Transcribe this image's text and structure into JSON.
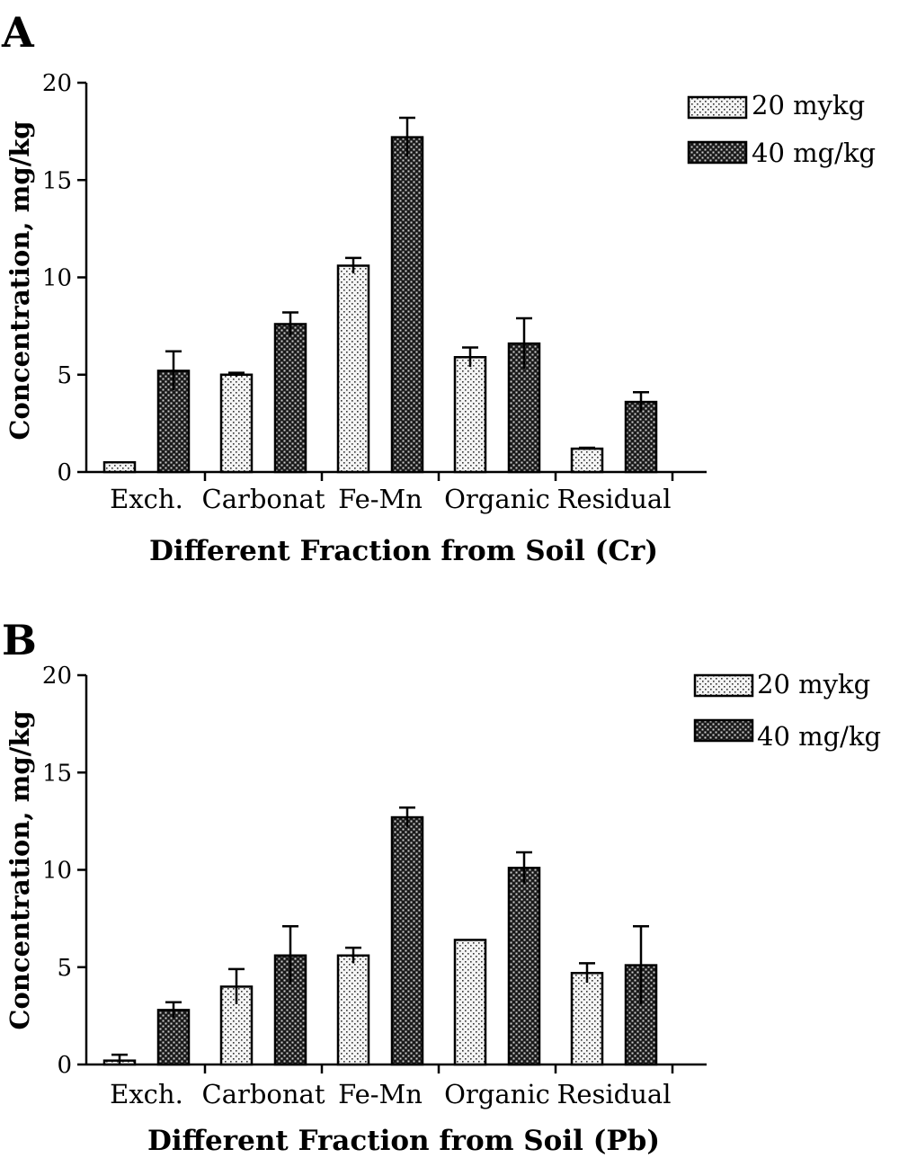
{
  "chart_data": [
    {
      "panel": "A",
      "type": "bar",
      "categories": [
        "Exch.",
        "Carbonat",
        "Fe-Mn",
        "Organic",
        "Residual"
      ],
      "series": [
        {
          "name": "20 mykg",
          "values": [
            0.5,
            5.0,
            10.6,
            5.9,
            1.2
          ],
          "errors": [
            0.0,
            0.1,
            0.4,
            0.5,
            0.05
          ]
        },
        {
          "name": "40 mg/kg",
          "values": [
            5.2,
            7.6,
            17.2,
            6.6,
            3.6
          ],
          "errors": [
            1.0,
            0.6,
            1.0,
            1.3,
            0.5
          ]
        }
      ],
      "xlabel": "Different Fraction from Soil (Cr)",
      "ylabel": "Concentration, mg/kg",
      "ylim": [
        0,
        20
      ],
      "yticks": [
        "0",
        "5",
        "10",
        "15",
        "20"
      ],
      "grid": false,
      "legend_position": "top-right"
    },
    {
      "panel": "B",
      "type": "bar",
      "categories": [
        "Exch.",
        "Carbonat",
        "Fe-Mn",
        "Organic",
        "Residual"
      ],
      "series": [
        {
          "name": "20 mykg",
          "values": [
            0.2,
            4.0,
            5.6,
            6.4,
            4.7
          ],
          "errors": [
            0.3,
            0.9,
            0.4,
            0.0,
            0.5
          ]
        },
        {
          "name": "40 mg/kg",
          "values": [
            2.8,
            5.6,
            12.7,
            10.1,
            5.1
          ],
          "errors": [
            0.4,
            1.5,
            0.5,
            0.8,
            2.0
          ]
        }
      ],
      "xlabel": "Different Fraction from Soil (Pb)",
      "ylabel": "Concentration, mg/kg",
      "ylim": [
        0,
        20
      ],
      "yticks": [
        "0",
        "5",
        "10",
        "15",
        "20"
      ],
      "grid": false,
      "legend_position": "top-right"
    }
  ],
  "colors": {
    "light_fill": "#efefef",
    "dark_fill": "#2a2a2a",
    "ink": "#000000"
  }
}
